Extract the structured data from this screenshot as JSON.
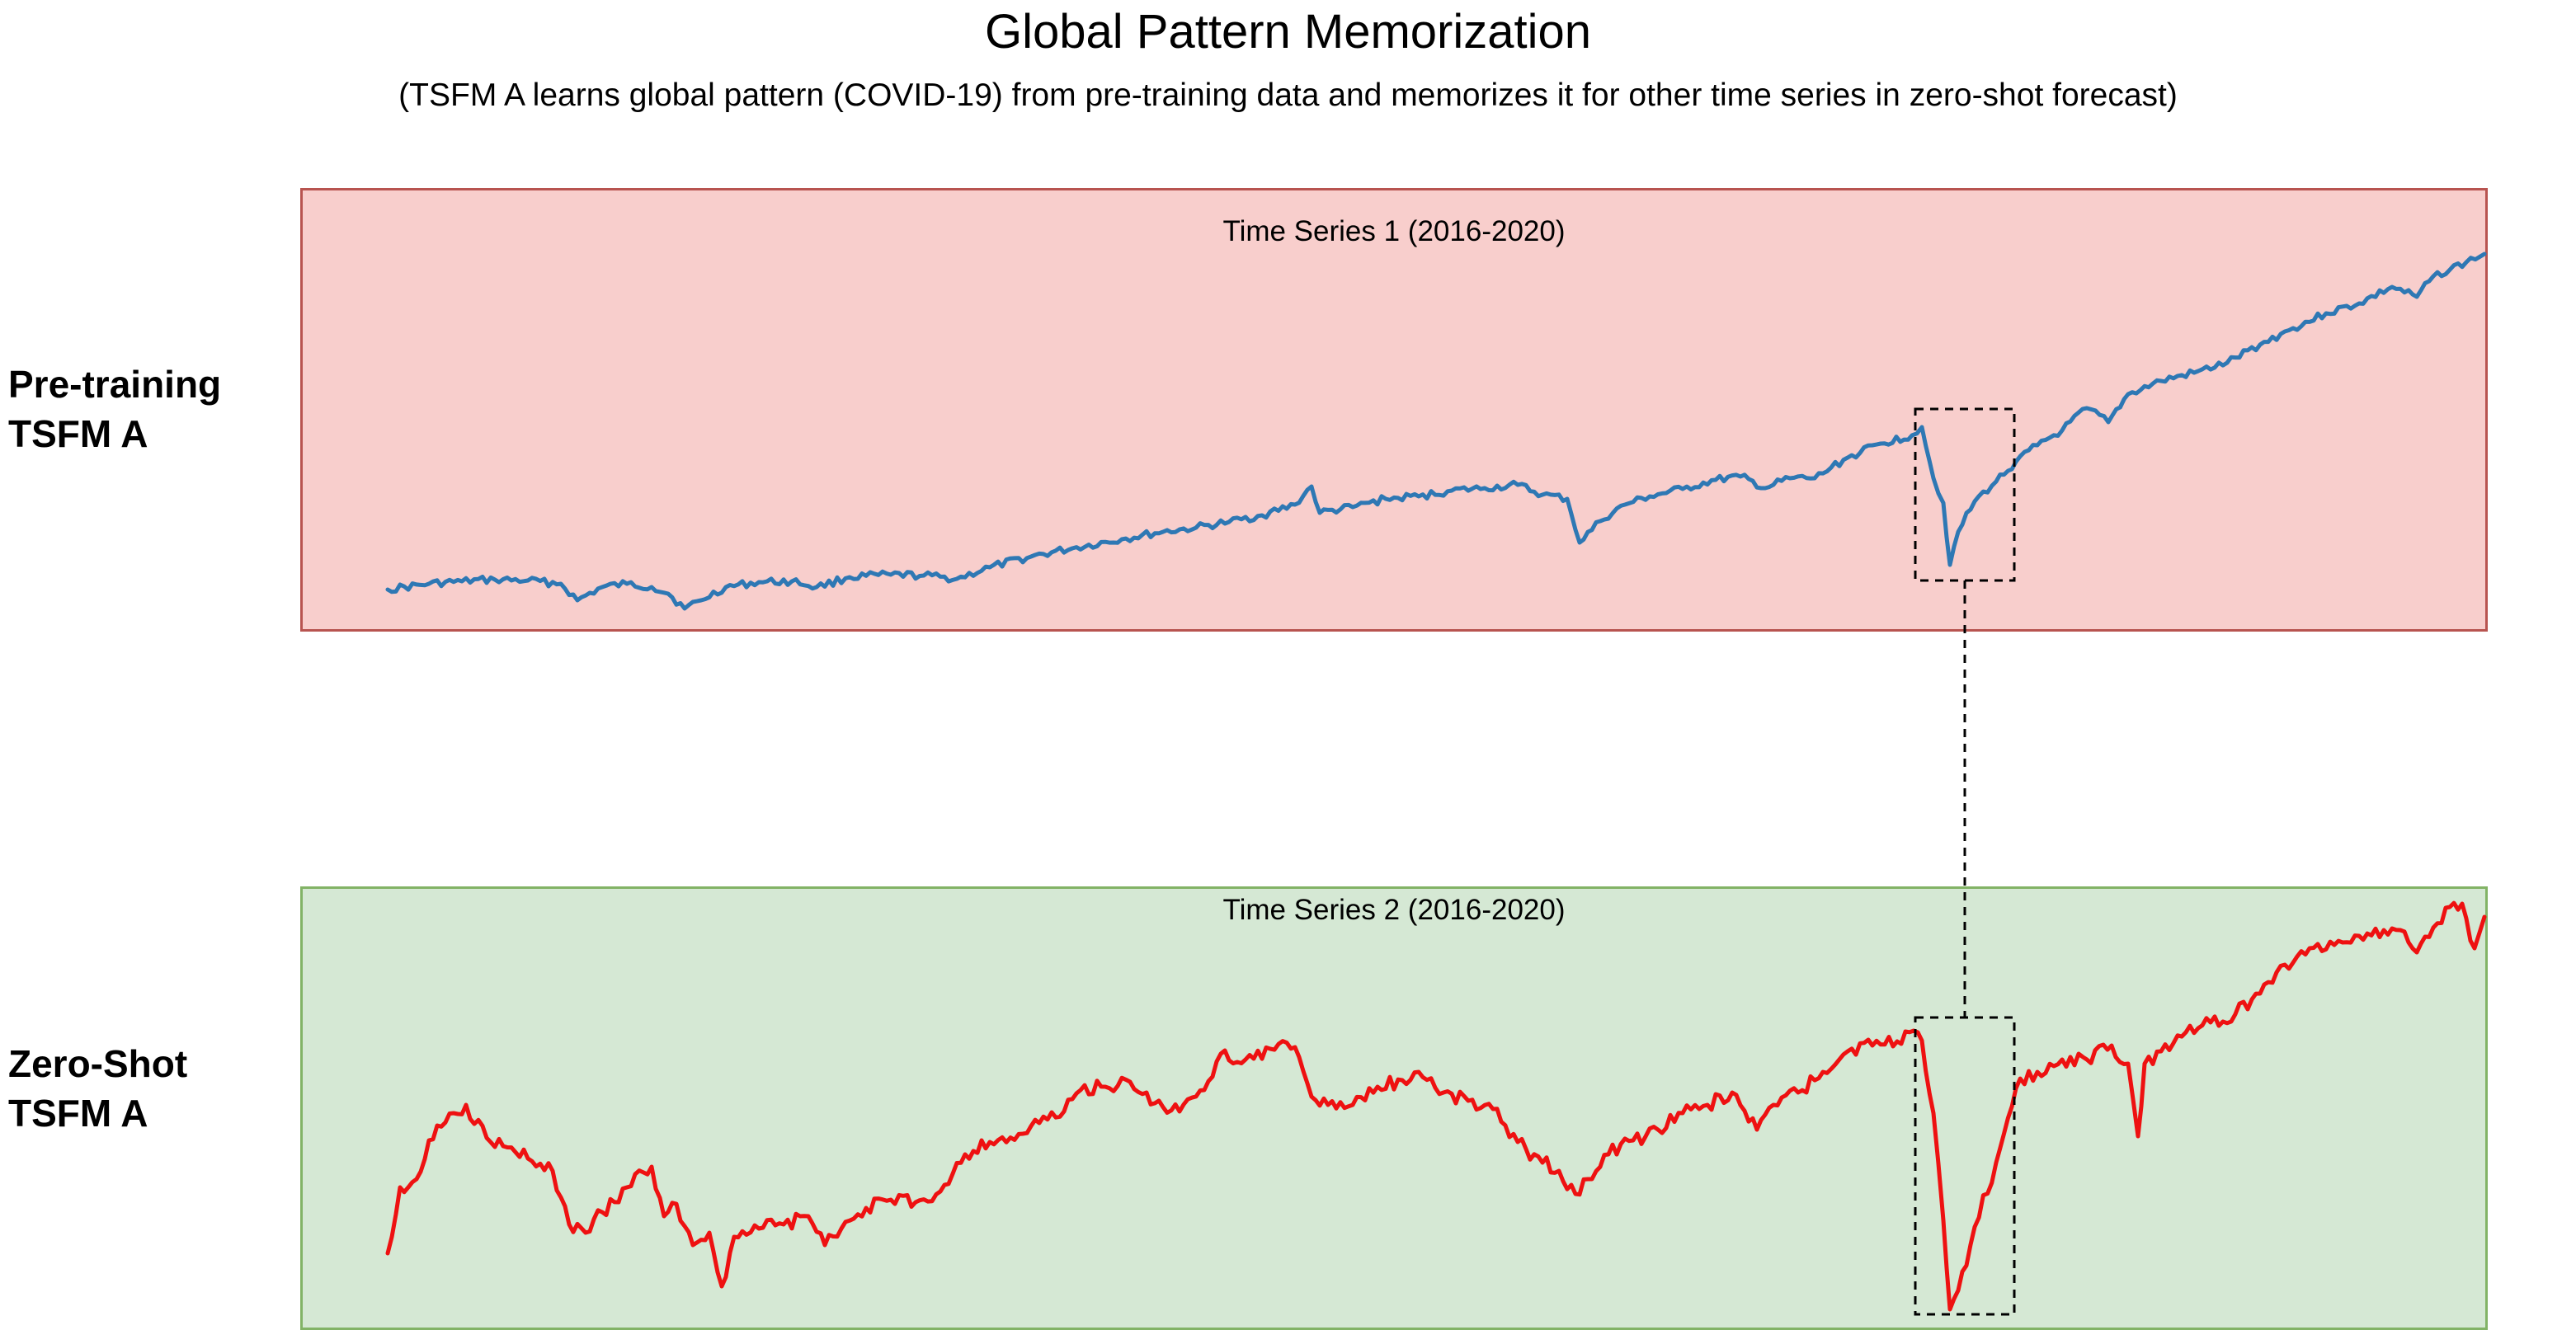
{
  "header": {
    "title": "Global Pattern Memorization",
    "subtitle": "(TSFM A learns global pattern (COVID-19) from pre-training data and memorizes it for other time series in zero-shot forecast)"
  },
  "rows": [
    {
      "label_line1": "Pre-training",
      "label_line2": "TSFM A",
      "panel_title": "Time Series 1 (2016-2020)",
      "panel_color": "#f8cecc",
      "border_color": "#b85450",
      "line_color": "#2e78b4"
    },
    {
      "label_line1": "Zero-Shot",
      "label_line2": "TSFM A",
      "panel_title": "Time Series 2 (2016-2020)",
      "panel_color": "#d5e8d4",
      "border_color": "#82b366",
      "line_color": "#ee1111"
    }
  ]
}
